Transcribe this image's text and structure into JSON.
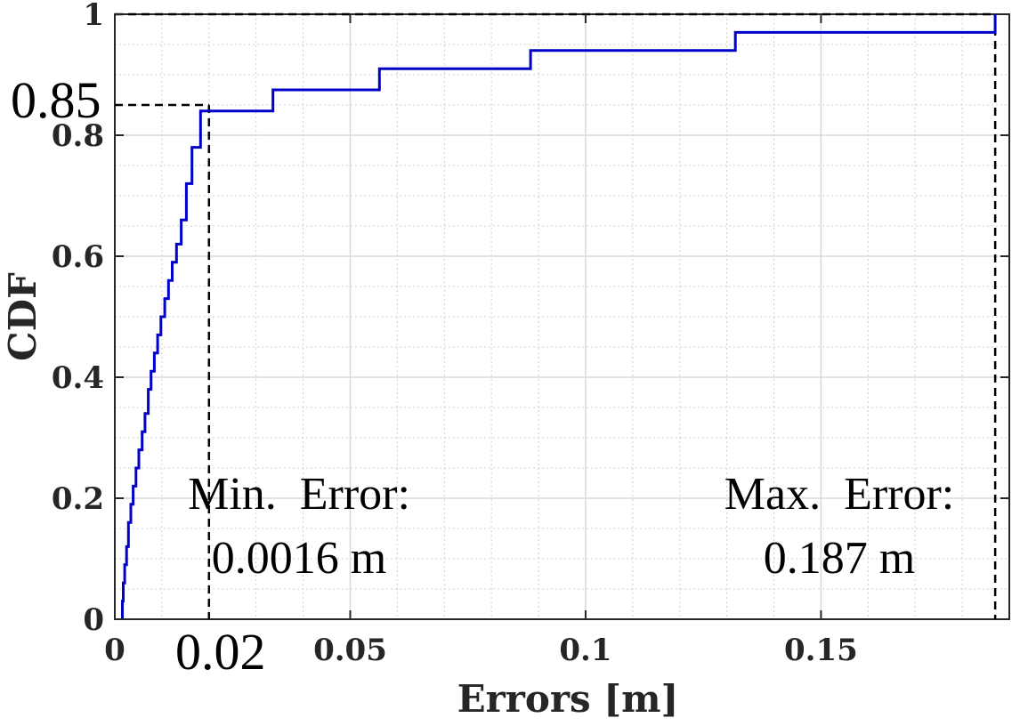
{
  "chart_data": {
    "type": "line",
    "xlabel": "Errors [m]",
    "ylabel": "CDF",
    "xlim": [
      0,
      0.19
    ],
    "ylim": [
      0,
      1
    ],
    "x_ticks": [
      0,
      0.05,
      0.1,
      0.15
    ],
    "x_tick_labels": [
      "0",
      "0.05",
      "0.1",
      "0.15"
    ],
    "y_ticks": [
      0,
      0.2,
      0.4,
      0.6,
      0.8,
      1
    ],
    "y_tick_labels": [
      "0",
      "0.2",
      "0.4",
      "0.6",
      "0.8",
      "1"
    ],
    "grid": true,
    "minor_grid": true,
    "series": [
      {
        "color": "#0000c8",
        "style": "step",
        "x": [
          0.0016,
          0.0018,
          0.0021,
          0.0025,
          0.0029,
          0.0034,
          0.0039,
          0.0045,
          0.0051,
          0.0058,
          0.0064,
          0.0071,
          0.0077,
          0.0084,
          0.0091,
          0.0098,
          0.0106,
          0.0114,
          0.0122,
          0.0131,
          0.0141,
          0.0152,
          0.0164,
          0.0182,
          0.0336,
          0.0562,
          0.0883,
          0.1318,
          0.187
        ],
        "y": [
          0.03,
          0.06,
          0.09,
          0.12,
          0.16,
          0.19,
          0.22,
          0.25,
          0.28,
          0.31,
          0.34,
          0.38,
          0.41,
          0.44,
          0.47,
          0.5,
          0.53,
          0.56,
          0.59,
          0.62,
          0.66,
          0.72,
          0.78,
          0.84,
          0.875,
          0.91,
          0.94,
          0.97,
          1.0
        ]
      }
    ],
    "reference_lines": [
      {
        "x": 0.02,
        "y": 0.85,
        "style": "dashed",
        "color": "#000000"
      },
      {
        "x": 0.187,
        "y": 1.0,
        "style": "dashed",
        "color": "#000000"
      }
    ],
    "marker_labels": {
      "x_marker": "0.02",
      "y_marker": "0.85"
    },
    "annotations": [
      {
        "line1": "Min.  Error:",
        "line2": "0.0016 m"
      },
      {
        "line1": "Max.  Error:",
        "line2": "0.187 m"
      }
    ]
  }
}
